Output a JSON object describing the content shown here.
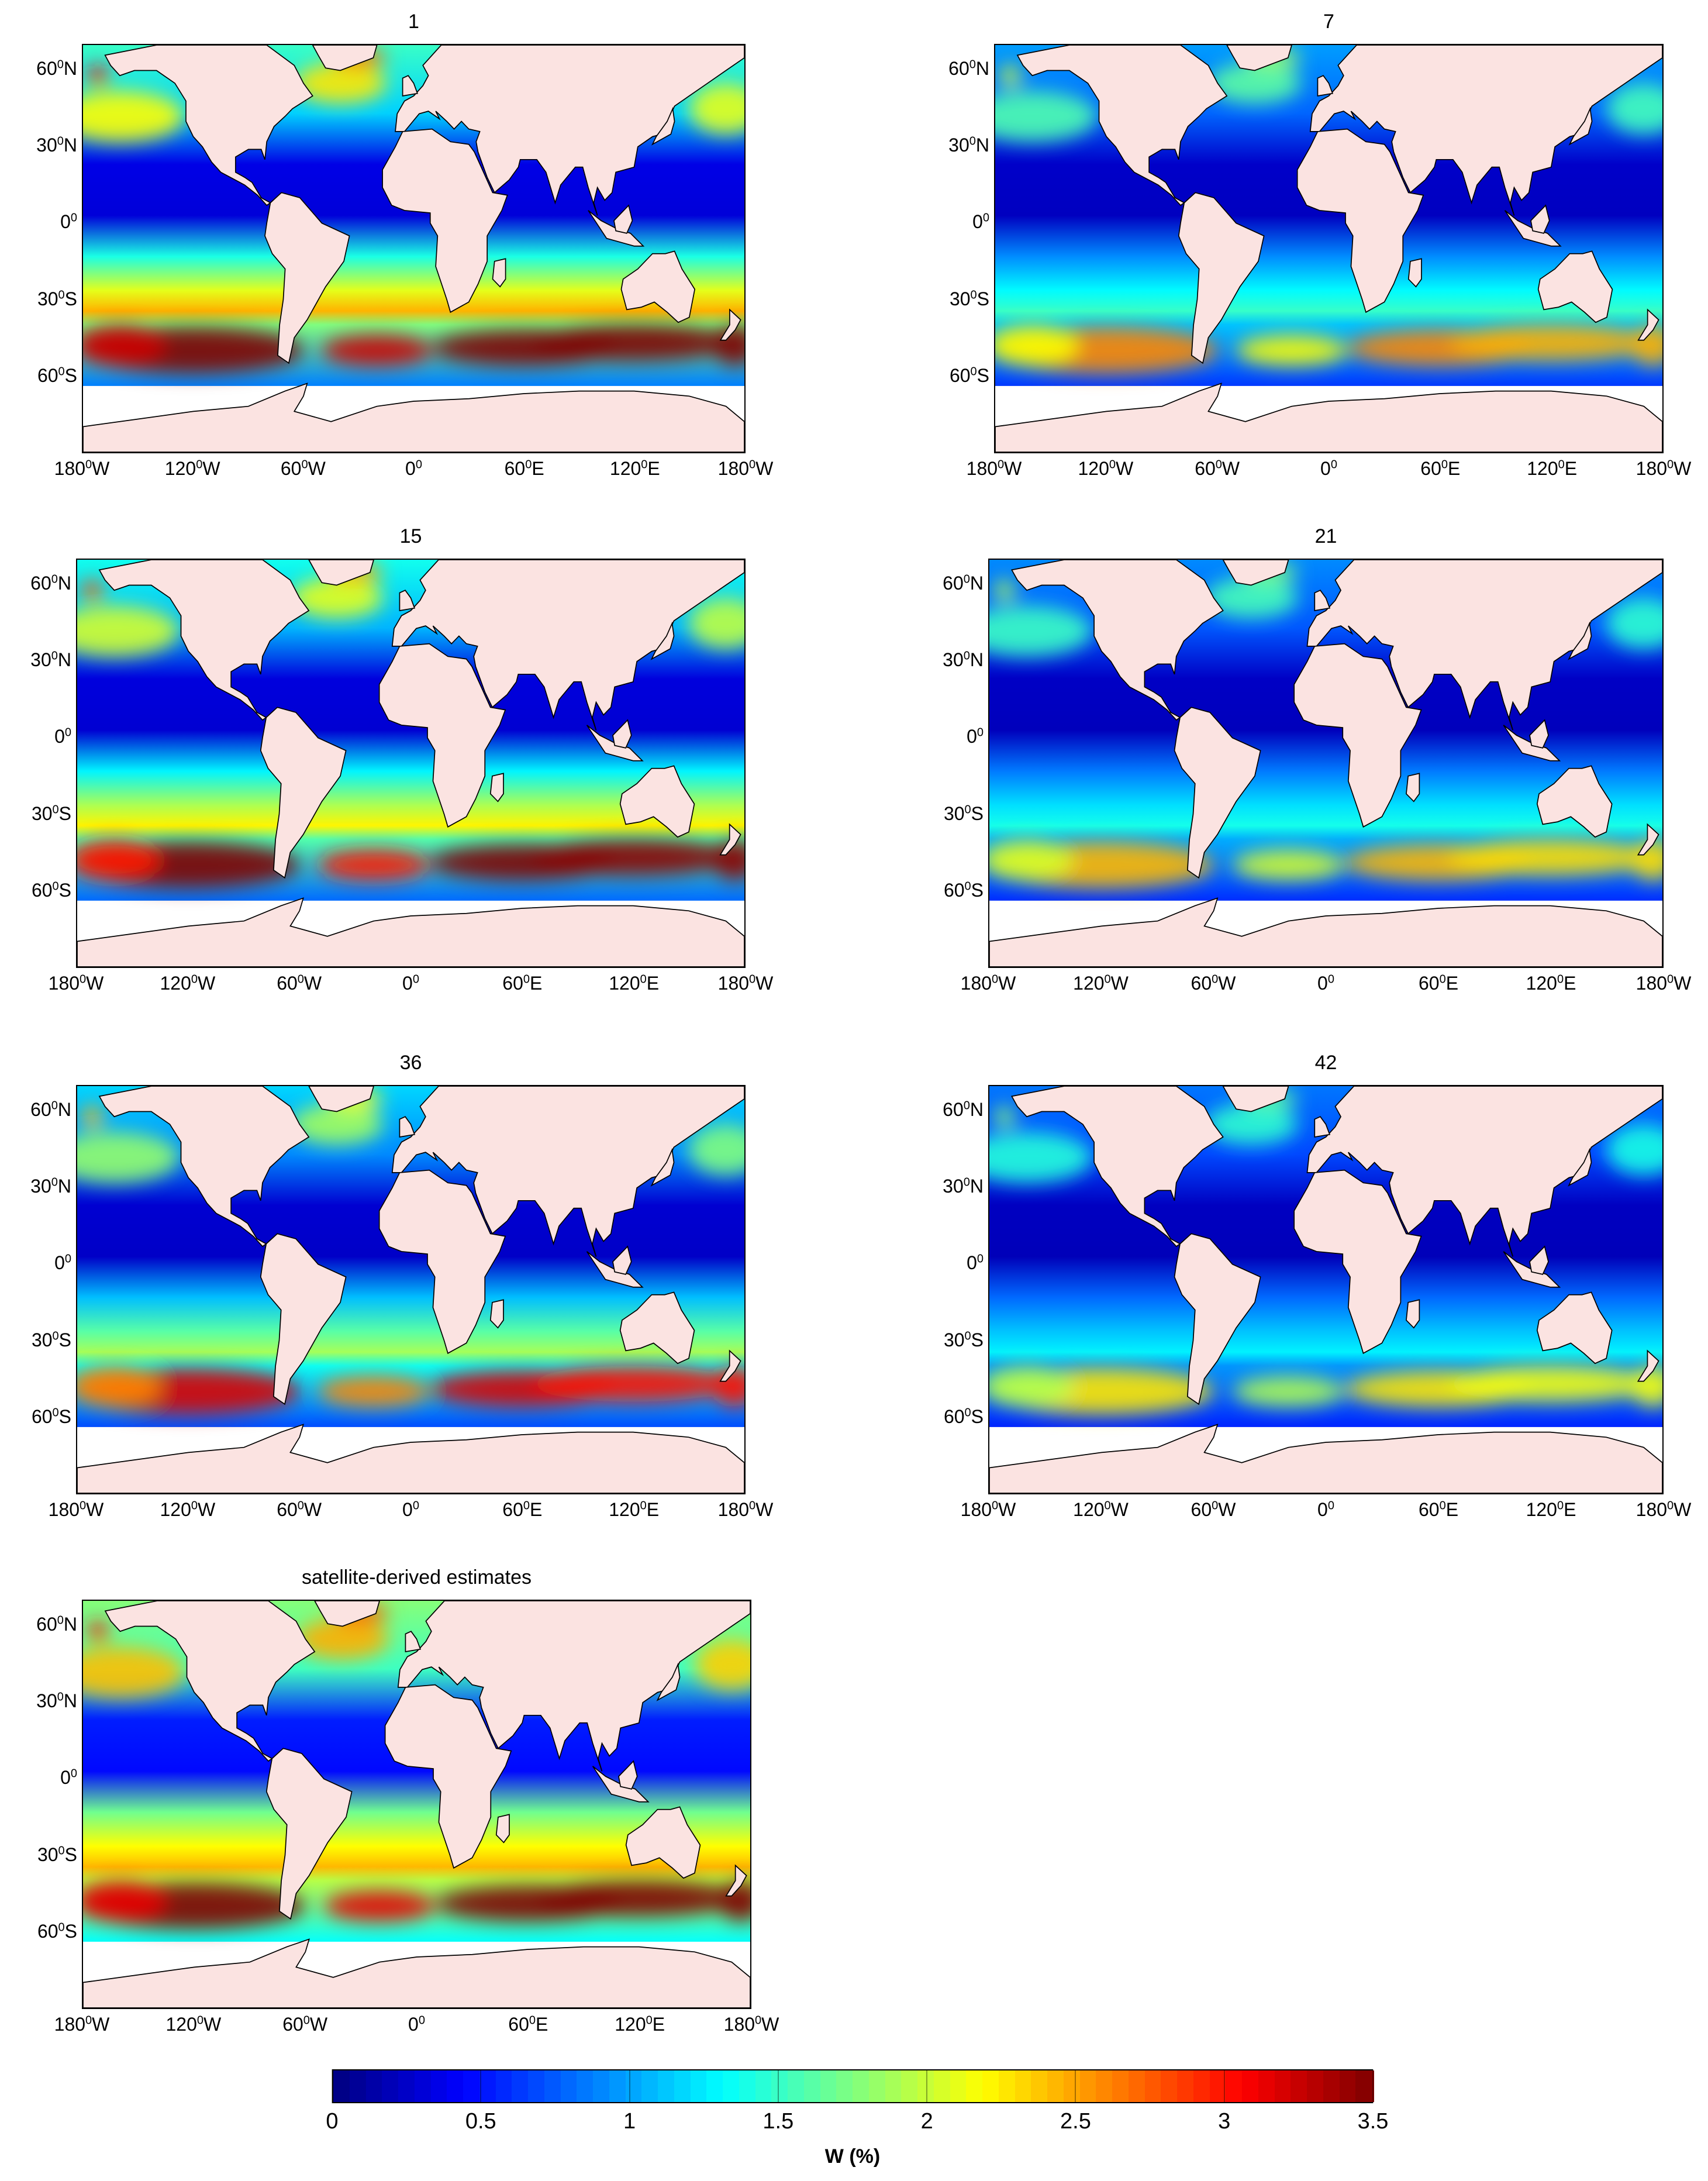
{
  "panels": [
    {
      "id": "p1",
      "title": "1",
      "intensity": 1.0,
      "ocean_base": 0.25
    },
    {
      "id": "p7",
      "title": "7",
      "intensity": 0.55,
      "ocean_base": 0.18
    },
    {
      "id": "p15",
      "title": "15",
      "intensity": 0.9,
      "ocean_base": 0.23
    },
    {
      "id": "p21",
      "title": "21",
      "intensity": 0.5,
      "ocean_base": 0.17
    },
    {
      "id": "p36",
      "title": "36",
      "intensity": 0.75,
      "ocean_base": 0.2
    },
    {
      "id": "p42",
      "title": "42",
      "intensity": 0.45,
      "ocean_base": 0.16
    },
    {
      "id": "psat",
      "title": "satellite-derived estimates",
      "intensity": 0.7,
      "ocean_base": 0.38
    }
  ],
  "lat_labels": [
    {
      "deg": "60",
      "hemi": "N"
    },
    {
      "deg": "30",
      "hemi": "N"
    },
    {
      "deg": "0",
      "hemi": ""
    },
    {
      "deg": "30",
      "hemi": "S"
    },
    {
      "deg": "60",
      "hemi": "S"
    }
  ],
  "lon_labels": [
    {
      "deg": "180",
      "hemi": "W"
    },
    {
      "deg": "120",
      "hemi": "W"
    },
    {
      "deg": "60",
      "hemi": "W"
    },
    {
      "deg": "0",
      "hemi": ""
    },
    {
      "deg": "60",
      "hemi": "E"
    },
    {
      "deg": "120",
      "hemi": "E"
    },
    {
      "deg": "180",
      "hemi": "W"
    }
  ],
  "colorbar": {
    "min": 0,
    "max": 3.5,
    "ticks": [
      "0",
      "0.5",
      "1",
      "1.5",
      "2",
      "2.5",
      "3",
      "3.5"
    ],
    "label": "W (%)",
    "colormap": "jet"
  },
  "colors": {
    "land": "#fbe3e1",
    "no_data": "#ffffff",
    "coastline": "#000000"
  }
}
